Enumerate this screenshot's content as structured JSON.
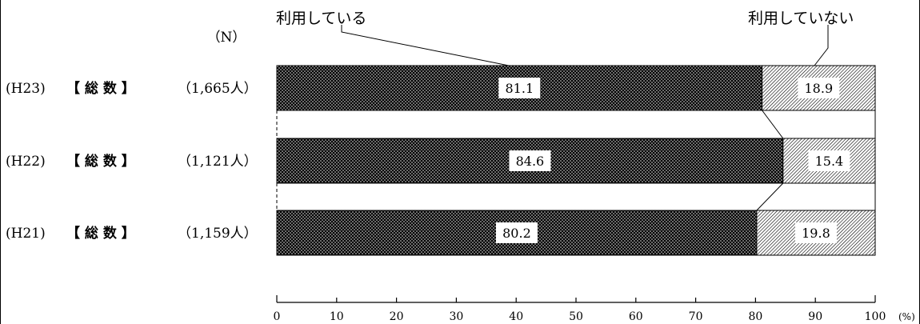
{
  "chart_data": {
    "type": "bar",
    "stacked": true,
    "orientation": "horizontal",
    "n_header": "（N）",
    "unit_label": "(%)",
    "xlim": [
      0,
      100
    ],
    "xticks": [
      0,
      10,
      20,
      30,
      40,
      50,
      60,
      70,
      80,
      90,
      100
    ],
    "rows": [
      {
        "year": "(H23)",
        "group": "【 総 数 】",
        "n": "（1,665人）"
      },
      {
        "year": "(H22)",
        "group": "【 総 数 】",
        "n": "（1,121人）"
      },
      {
        "year": "(H21)",
        "group": "【 総 数 】",
        "n": "（1,159人）"
      }
    ],
    "series": [
      {
        "name": "利用している",
        "values": [
          81.1,
          84.6,
          80.2
        ],
        "labels": [
          "81.1",
          "84.6",
          "80.2"
        ],
        "pattern": "dots"
      },
      {
        "name": "利用していない",
        "values": [
          18.9,
          15.4,
          19.8
        ],
        "labels": [
          "18.9",
          "15.4",
          "19.8"
        ],
        "pattern": "hatch"
      }
    ],
    "colors": {
      "used": "#000000",
      "unused": "#ffffff"
    }
  }
}
